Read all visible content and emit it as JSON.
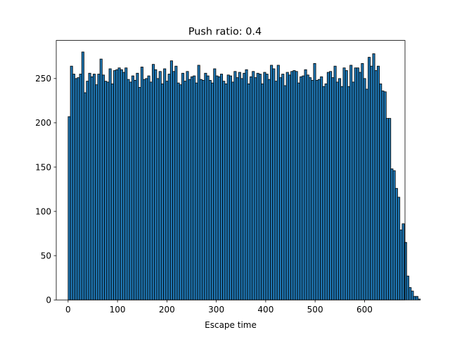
{
  "chart_data": {
    "type": "bar",
    "title": "Push ratio: 0.4",
    "xlabel": "Escape time",
    "ylabel": "",
    "bin_width": 4.6,
    "bin_start": 0,
    "values": [
      207,
      264,
      255,
      250,
      251,
      255,
      280,
      234,
      247,
      256,
      252,
      255,
      243,
      255,
      272,
      254,
      247,
      246,
      261,
      244,
      259,
      260,
      262,
      260,
      257,
      262,
      249,
      246,
      253,
      248,
      256,
      240,
      263,
      249,
      250,
      253,
      246,
      266,
      260,
      250,
      258,
      244,
      261,
      247,
      255,
      270,
      258,
      264,
      245,
      243,
      256,
      247,
      258,
      249,
      252,
      253,
      245,
      265,
      249,
      248,
      256,
      253,
      248,
      245,
      261,
      253,
      252,
      255,
      247,
      244,
      254,
      253,
      246,
      258,
      251,
      257,
      250,
      256,
      260,
      244,
      252,
      258,
      251,
      256,
      255,
      244,
      257,
      255,
      249,
      265,
      261,
      247,
      265,
      251,
      255,
      242,
      257,
      254,
      258,
      259,
      258,
      245,
      252,
      253,
      260,
      254,
      251,
      248,
      267,
      248,
      249,
      252,
      241,
      244,
      257,
      258,
      251,
      264,
      246,
      250,
      241,
      262,
      259,
      241,
      265,
      246,
      262,
      262,
      257,
      267,
      250,
      238,
      274,
      264,
      278,
      259,
      264,
      244,
      236,
      235,
      205,
      205,
      148,
      146,
      126,
      116,
      79,
      86,
      65,
      27,
      14,
      10,
      4,
      4,
      1
    ],
    "xlim": [
      -24,
      682
    ],
    "ylim": [
      0,
      293
    ],
    "xticks": [
      0,
      100,
      200,
      300,
      400,
      500,
      600
    ],
    "yticks": [
      0,
      50,
      100,
      150,
      200,
      250
    ],
    "grid": false,
    "legend": "none"
  }
}
